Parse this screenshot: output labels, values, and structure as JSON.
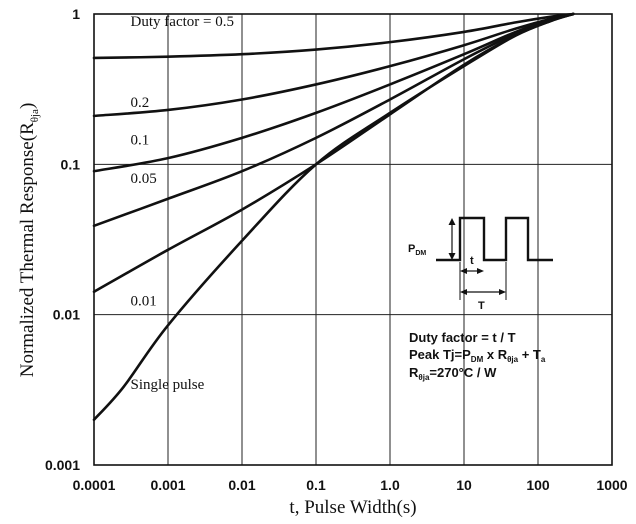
{
  "chart_data": {
    "type": "line",
    "x_scale": "log",
    "y_scale": "log",
    "xlim": [
      0.0001,
      1000
    ],
    "ylim": [
      0.001,
      1
    ],
    "grid": true,
    "xlabel": "t, Pulse Width(s)",
    "ylabel_prefix": "Normalized Thermal Response(R",
    "ylabel_sub": "θja",
    "ylabel_suffix": ")",
    "x_ticks": [
      {
        "value": 0.0001,
        "label": "0.0001"
      },
      {
        "value": 0.001,
        "label": "0.001"
      },
      {
        "value": 0.01,
        "label": "0.01"
      },
      {
        "value": 0.1,
        "label": "0.1"
      },
      {
        "value": 1,
        "label": "1.0"
      },
      {
        "value": 10,
        "label": "10"
      },
      {
        "value": 100,
        "label": "100"
      },
      {
        "value": 1000,
        "label": "1000"
      }
    ],
    "y_ticks": [
      {
        "value": 1,
        "label": "1"
      },
      {
        "value": 0.1,
        "label": "0.1"
      },
      {
        "value": 0.01,
        "label": "0.01"
      },
      {
        "value": 0.001,
        "label": "0.001"
      }
    ],
    "series": [
      {
        "name": "Duty factor = 0.5",
        "label_anchor": {
          "x": 0.0004,
          "y": 0.83
        },
        "points": [
          [
            0.0001,
            0.51
          ],
          [
            0.001,
            0.52
          ],
          [
            0.01,
            0.54
          ],
          [
            0.1,
            0.58
          ],
          [
            1,
            0.65
          ],
          [
            10,
            0.76
          ],
          [
            50,
            0.88
          ],
          [
            150,
            0.96
          ],
          [
            300,
            1.0
          ]
        ]
      },
      {
        "name": "0.2",
        "label_anchor": {
          "x": 0.0004,
          "y": 0.24
        },
        "points": [
          [
            0.0001,
            0.21
          ],
          [
            0.001,
            0.23
          ],
          [
            0.01,
            0.27
          ],
          [
            0.1,
            0.34
          ],
          [
            1,
            0.45
          ],
          [
            10,
            0.62
          ],
          [
            50,
            0.8
          ],
          [
            150,
            0.93
          ],
          [
            300,
            1.0
          ]
        ]
      },
      {
        "name": "0.1",
        "label_anchor": {
          "x": 0.0004,
          "y": 0.135
        },
        "points": [
          [
            0.0001,
            0.09
          ],
          [
            0.001,
            0.11
          ],
          [
            0.01,
            0.15
          ],
          [
            0.1,
            0.22
          ],
          [
            1,
            0.34
          ],
          [
            10,
            0.54
          ],
          [
            50,
            0.76
          ],
          [
            150,
            0.92
          ],
          [
            300,
            1.0
          ]
        ]
      },
      {
        "name": "0.05",
        "label_anchor": {
          "x": 0.0004,
          "y": 0.075
        },
        "points": [
          [
            0.0001,
            0.039
          ],
          [
            0.001,
            0.059
          ],
          [
            0.01,
            0.09
          ],
          [
            0.1,
            0.15
          ],
          [
            1,
            0.27
          ],
          [
            10,
            0.5
          ],
          [
            50,
            0.74
          ],
          [
            150,
            0.91
          ],
          [
            300,
            1.0
          ]
        ]
      },
      {
        "name": "0.01",
        "label_anchor": {
          "x": 0.0004,
          "y": 0.0115
        },
        "points": [
          [
            0.0001,
            0.0142
          ],
          [
            0.001,
            0.027
          ],
          [
            0.01,
            0.05
          ],
          [
            0.1,
            0.1
          ],
          [
            1,
            0.215
          ],
          [
            10,
            0.46
          ],
          [
            50,
            0.72
          ],
          [
            150,
            0.9
          ],
          [
            300,
            1.0
          ]
        ]
      },
      {
        "name": "Single pulse",
        "label_anchor": {
          "x": 0.0004,
          "y": 0.0032
        },
        "points": [
          [
            0.0001,
            0.002
          ],
          [
            0.00025,
            0.0033
          ],
          [
            0.001,
            0.0085
          ],
          [
            0.01,
            0.031
          ],
          [
            0.1,
            0.1
          ],
          [
            1,
            0.22
          ],
          [
            10,
            0.45
          ],
          [
            50,
            0.72
          ],
          [
            150,
            0.9
          ],
          [
            300,
            1.0
          ]
        ]
      }
    ],
    "annotations": {
      "pdm_main": "P",
      "pdm_sub": "DM",
      "t_label": "t",
      "T_label": "T",
      "duty_line": "Duty factor = t / T",
      "peak_prefix": "Peak Tj=P",
      "peak_sub1": "DM",
      "peak_mid": " x R",
      "peak_sub2": "θja",
      "peak_suffix": " + T",
      "peak_sub3": "a",
      "rth_prefix": "R",
      "rth_sub": "θja",
      "rth_suffix": "=270°C / W"
    }
  }
}
